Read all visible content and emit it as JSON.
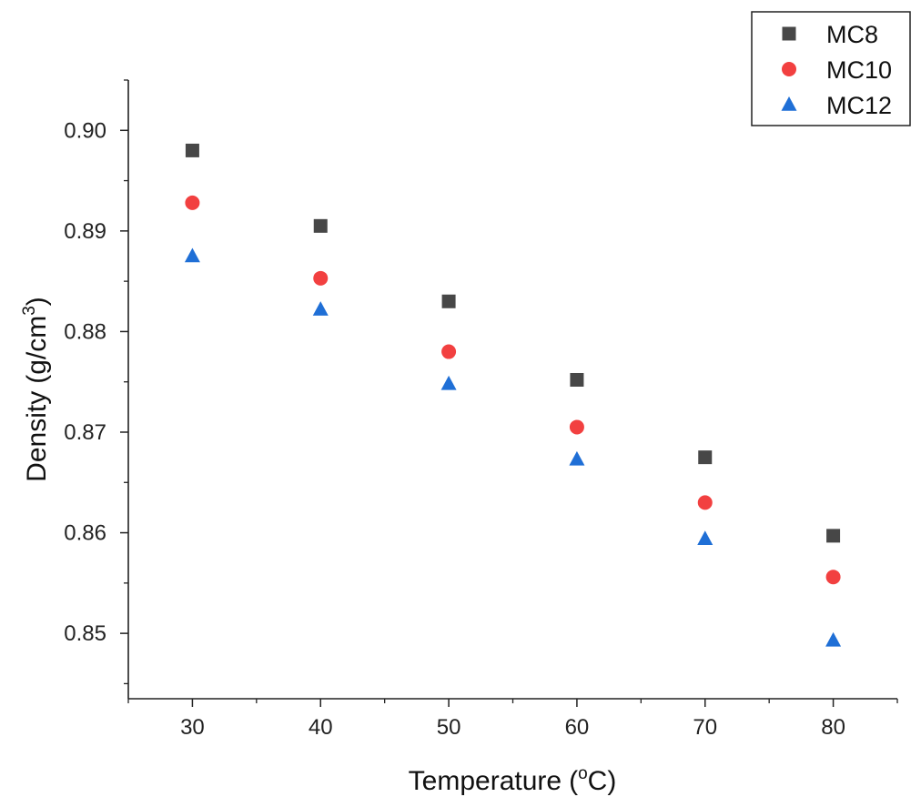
{
  "chart_data": {
    "type": "scatter",
    "title": "",
    "xlabel": "Temperature",
    "xlabel_unit": "(°C)",
    "xlabel_unit_parts": {
      "open": "(",
      "sup": "o",
      "unit": "C)"
    },
    "ylabel": "Density",
    "ylabel_unit_parts": {
      "base": "(g/cm",
      "sup": "3",
      "close": ")"
    },
    "x": [
      30,
      40,
      50,
      60,
      70,
      80
    ],
    "xlim": [
      25,
      85
    ],
    "ylim": [
      0.8435,
      0.905
    ],
    "xticks": [
      30,
      40,
      50,
      60,
      70,
      80
    ],
    "xtick_labels": [
      "30",
      "40",
      "50",
      "60",
      "70",
      "80"
    ],
    "yticks": [
      0.85,
      0.86,
      0.87,
      0.88,
      0.89,
      0.9
    ],
    "ytick_labels": [
      "0.85",
      "0.86",
      "0.87",
      "0.88",
      "0.89",
      "0.90"
    ],
    "grid": false,
    "legend_position": "top-right",
    "series": [
      {
        "name": "MC8",
        "marker": "square",
        "color": "#474747",
        "values": [
          0.898,
          0.8905,
          0.883,
          0.8752,
          0.8675,
          0.8597
        ]
      },
      {
        "name": "MC10",
        "marker": "circle",
        "color": "#f24040",
        "values": [
          0.8928,
          0.8853,
          0.878,
          0.8705,
          0.863,
          0.8556
        ]
      },
      {
        "name": "MC12",
        "marker": "triangle",
        "color": "#1f6fd6",
        "values": [
          0.8875,
          0.8822,
          0.8748,
          0.8673,
          0.8594,
          0.8493
        ]
      }
    ]
  }
}
